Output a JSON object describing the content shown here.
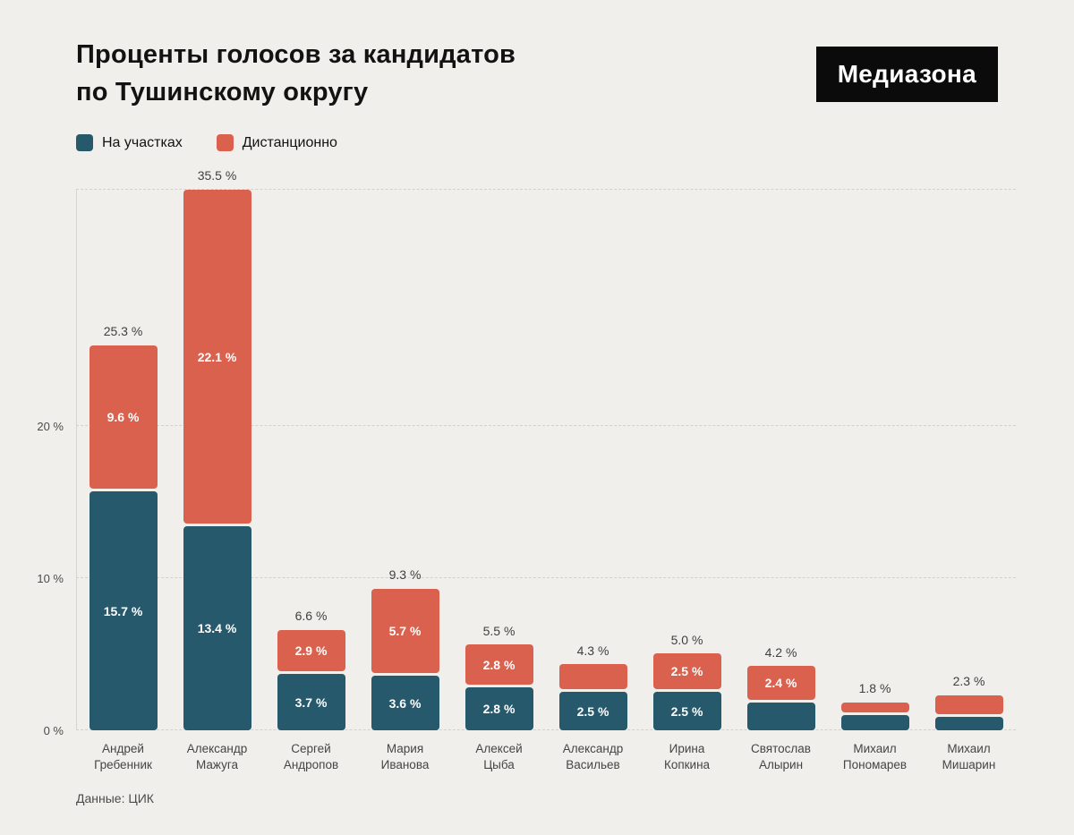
{
  "header": {
    "title_line1": "Проценты голосов за кандидатов",
    "title_line2": "по Тушинскому округу",
    "logo_text": "Медиазона"
  },
  "legend": {
    "items": [
      {
        "label": "На участках",
        "color": "#26596b"
      },
      {
        "label": "Дистанционно",
        "color": "#d9614e"
      }
    ]
  },
  "footer": {
    "source": "Данные: ЦИК"
  },
  "chart_data": {
    "type": "bar",
    "stacked": true,
    "title": "Проценты голосов за кандидатов по Тушинскому округу",
    "categories": [
      "Андрей\nГребенник",
      "Александр\nМажуга",
      "Сергей\nАндропов",
      "Мария\nИванова",
      "Алексей\nЦыба",
      "Александр\nВасильев",
      "Ирина\nКопкина",
      "Святослав\nАлырин",
      "Михаил\nПономарев",
      "Михаил\nМишарин"
    ],
    "series": [
      {
        "name": "На участках",
        "color": "#26596b",
        "values": [
          15.7,
          13.4,
          3.7,
          3.6,
          2.8,
          2.5,
          2.5,
          1.8,
          1.0,
          0.9
        ],
        "labels": [
          "15.7 %",
          "13.4 %",
          "3.7 %",
          "3.6 %",
          "2.8 %",
          "2.5 %",
          "2.5 %",
          "",
          "",
          ""
        ]
      },
      {
        "name": "Дистанционно",
        "color": "#d9614e",
        "values": [
          9.6,
          22.1,
          2.9,
          5.7,
          2.8,
          1.8,
          2.5,
          2.4,
          0.8,
          1.4
        ],
        "labels": [
          "9.6 %",
          "22.1 %",
          "2.9 %",
          "5.7 %",
          "2.8 %",
          "",
          "2.5 %",
          "2.4 %",
          "",
          ""
        ]
      }
    ],
    "totals": [
      "25.3 %",
      "35.5 %",
      "6.6 %",
      "9.3 %",
      "5.5 %",
      "4.3 %",
      "5.0 %",
      "4.2 %",
      "1.8 %",
      "2.3 %"
    ],
    "yticks": [
      {
        "value": 0,
        "label": "0 %"
      },
      {
        "value": 10,
        "label": "10 %"
      },
      {
        "value": 20,
        "label": "20 %"
      },
      {
        "value": 35.5,
        "label": ""
      }
    ],
    "ylim": [
      0,
      35.5
    ],
    "grid": "dashed-horizontal",
    "legend_position": "top-left",
    "ylabel": "",
    "xlabel": ""
  }
}
